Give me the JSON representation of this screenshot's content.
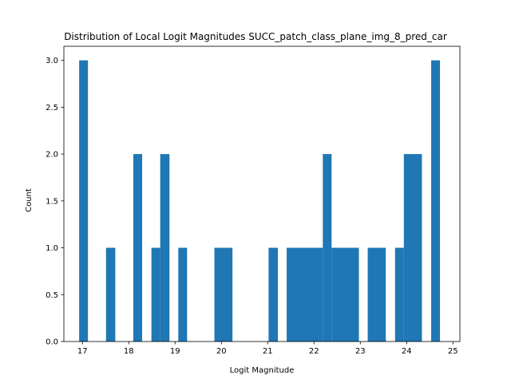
{
  "chart_data": {
    "type": "bar",
    "title": "Distribution of Local Logit Magnitudes SUCC_patch_class_plane_img_8_pred_car",
    "xlabel": "Logit Magnitude",
    "ylabel": "Count",
    "xlim": [
      16.6,
      25.15
    ],
    "ylim": [
      0,
      3.15
    ],
    "xticks": [
      "17",
      "18",
      "19",
      "20",
      "21",
      "22",
      "23",
      "24",
      "25"
    ],
    "yticks": [
      "0.0",
      "0.5",
      "1.0",
      "1.5",
      "2.0",
      "2.5",
      "3.0"
    ],
    "bar_color": "#1f77b4",
    "bins": [
      {
        "x0": 16.93,
        "x1": 17.12,
        "count": 3
      },
      {
        "x0": 17.51,
        "x1": 17.71,
        "count": 1
      },
      {
        "x0": 18.1,
        "x1": 18.29,
        "count": 2
      },
      {
        "x0": 18.49,
        "x1": 18.68,
        "count": 1
      },
      {
        "x0": 18.68,
        "x1": 18.88,
        "count": 2
      },
      {
        "x0": 19.07,
        "x1": 19.26,
        "count": 1
      },
      {
        "x0": 19.85,
        "x1": 20.24,
        "count": 1
      },
      {
        "x0": 21.02,
        "x1": 21.22,
        "count": 1
      },
      {
        "x0": 21.41,
        "x1": 22.19,
        "count": 1
      },
      {
        "x0": 22.19,
        "x1": 22.38,
        "count": 2
      },
      {
        "x0": 22.38,
        "x1": 22.97,
        "count": 1
      },
      {
        "x0": 23.16,
        "x1": 23.55,
        "count": 1
      },
      {
        "x0": 23.75,
        "x1": 23.94,
        "count": 1
      },
      {
        "x0": 23.94,
        "x1": 24.33,
        "count": 2
      },
      {
        "x0": 24.53,
        "x1": 24.72,
        "count": 3
      }
    ],
    "grid": false,
    "legend": false
  }
}
